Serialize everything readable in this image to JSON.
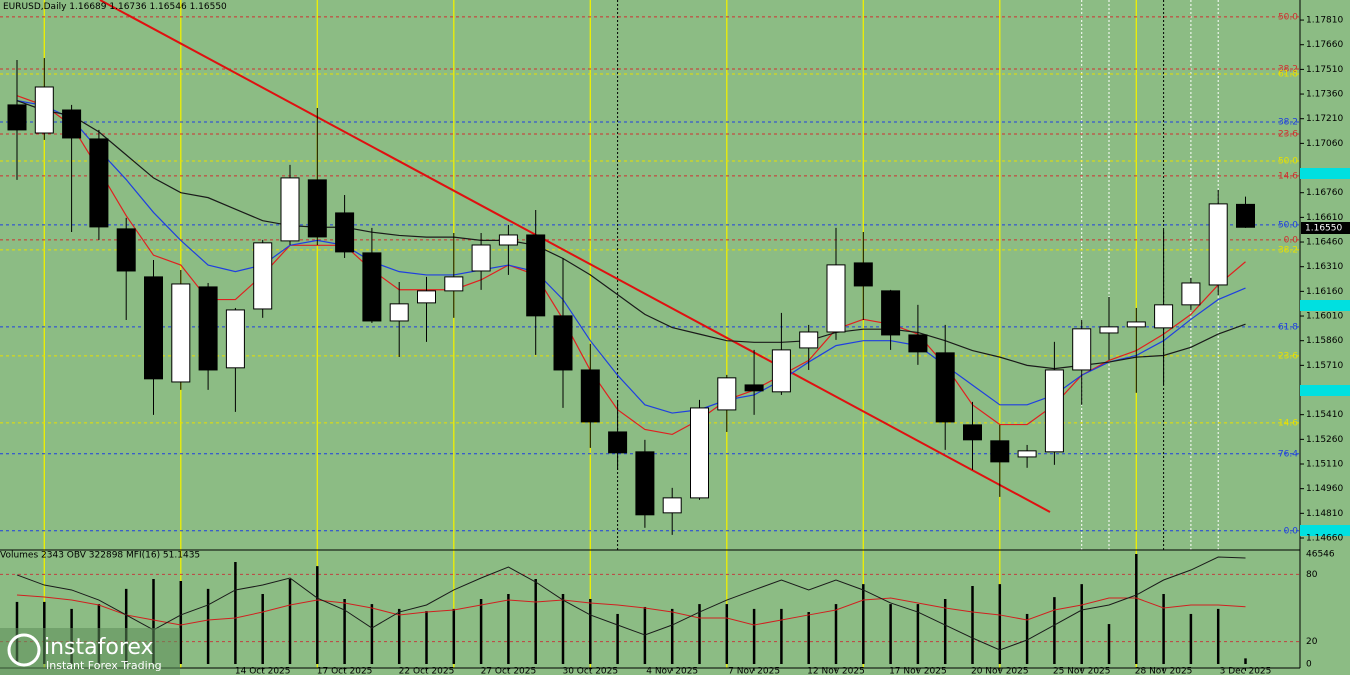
{
  "chart_data": [
    {
      "type": "candlestick",
      "title": "EURUSD,Daily",
      "last_value_labels": [
        "1.16689",
        "1.16736",
        "1.16546",
        "1.16550"
      ],
      "categories": [
        null,
        null,
        null,
        null,
        null,
        null,
        null,
        null,
        null,
        "14 Oct 2025",
        null,
        null,
        "17 Oct 2025",
        null,
        null,
        "22 Oct 2025",
        null,
        null,
        "27 Oct 2025",
        null,
        null,
        "30 Oct 2025",
        null,
        null,
        "4 Nov 2025",
        null,
        null,
        "7 Nov 2025",
        null,
        null,
        "12 Nov 2025",
        null,
        null,
        "17 Nov 2025",
        null,
        null,
        "20 Nov 2025",
        null,
        null,
        "25 Nov 2025",
        null,
        null,
        "28 Nov 2025",
        null,
        null,
        "3 Dec 2025"
      ],
      "open": [
        1.17294,
        1.17123,
        1.17263,
        1.17087,
        1.1654,
        1.16248,
        1.15609,
        1.16187,
        1.15695,
        1.16053,
        1.16467,
        1.16838,
        1.16637,
        1.16394,
        1.1598,
        1.1609,
        1.16163,
        1.16284,
        1.16442,
        1.16503,
        1.16011,
        1.15682,
        1.15305,
        1.15184,
        1.14813,
        1.14904,
        1.15439,
        1.15591,
        1.15549,
        1.15816,
        1.15913,
        1.16333,
        1.16163,
        1.15895,
        1.15786,
        1.15348,
        1.15251,
        1.15153,
        1.15184,
        1.15682,
        1.15907,
        1.15944,
        1.15938,
        1.16078,
        1.16199,
        1.16689
      ],
      "high": [
        1.17567,
        1.17579,
        1.17294,
        1.17142,
        1.16607,
        1.16351,
        1.1629,
        1.16211,
        1.16059,
        1.16473,
        1.16929,
        1.17275,
        1.16746,
        1.16546,
        1.16217,
        1.16248,
        1.16515,
        1.16515,
        1.16564,
        1.16655,
        1.16363,
        1.15841,
        1.155,
        1.15257,
        1.14965,
        1.155,
        1.15652,
        1.15804,
        1.16029,
        1.15956,
        1.16546,
        1.16521,
        1.16169,
        1.16078,
        1.15956,
        1.15488,
        1.15348,
        1.15226,
        1.15853,
        1.15986,
        1.16126,
        1.16059,
        1.16534,
        1.16242,
        1.16777,
        1.16736
      ],
      "low": [
        1.16838,
        1.17081,
        1.16521,
        1.16473,
        1.15986,
        1.15409,
        1.15561,
        1.15561,
        1.15427,
        1.15999,
        1.16442,
        1.16442,
        1.16363,
        1.15968,
        1.15761,
        1.15853,
        1.15999,
        1.16169,
        1.1626,
        1.15774,
        1.15451,
        1.15208,
        1.15074,
        1.14722,
        1.14679,
        1.14892,
        1.15305,
        1.15409,
        1.1553,
        1.15682,
        1.15865,
        1.15986,
        1.15804,
        1.15713,
        1.15196,
        1.15074,
        1.1491,
        1.15087,
        1.15105,
        1.1547,
        1.15743,
        1.15543,
        1.15591,
        1.16047,
        1.16138,
        1.16546
      ],
      "close": [
        1.17142,
        1.17403,
        1.17093,
        1.16552,
        1.16284,
        1.15628,
        1.16205,
        1.15682,
        1.16047,
        1.16455,
        1.1685,
        1.16491,
        1.164,
        1.1598,
        1.16084,
        1.16163,
        1.16248,
        1.16442,
        1.16503,
        1.16011,
        1.15682,
        1.15366,
        1.15178,
        1.14801,
        1.14904,
        1.15451,
        1.15634,
        1.15555,
        1.15804,
        1.15913,
        1.16321,
        1.16193,
        1.15895,
        1.15792,
        1.15366,
        1.15257,
        1.15123,
        1.1519,
        1.15682,
        1.15932,
        1.15944,
        1.15974,
        1.16078,
        1.16211,
        1.16692,
        1.1655
      ],
      "lines": [
        {
          "color": "#e02020",
          "values": [
            1.1735,
            1.1729,
            1.1717,
            1.169,
            1.1662,
            1.1638,
            1.1632,
            1.1611,
            1.1611,
            1.1626,
            1.1644,
            1.1644,
            1.1644,
            1.1629,
            1.1617,
            1.1617,
            1.1617,
            1.1623,
            1.1632,
            1.1626,
            1.1599,
            1.1568,
            1.1544,
            1.1532,
            1.1529,
            1.1538,
            1.155,
            1.1556,
            1.1565,
            1.1574,
            1.1593,
            1.1599,
            1.1596,
            1.159,
            1.1571,
            1.1547,
            1.1535,
            1.1535,
            1.1547,
            1.1565,
            1.1574,
            1.158,
            1.159,
            1.1602,
            1.162,
            1.1634
          ]
        },
        {
          "color": "#1f3fe0",
          "values": [
            1.1732,
            1.1729,
            1.1721,
            1.1702,
            1.1684,
            1.1664,
            1.1647,
            1.1632,
            1.1628,
            1.1632,
            1.1644,
            1.1647,
            1.1644,
            1.1634,
            1.1628,
            1.1626,
            1.1626,
            1.1629,
            1.1632,
            1.1628,
            1.1611,
            1.1586,
            1.1565,
            1.1547,
            1.1542,
            1.1544,
            1.155,
            1.1553,
            1.1562,
            1.1573,
            1.1583,
            1.1586,
            1.1586,
            1.1583,
            1.1571,
            1.1559,
            1.1547,
            1.1547,
            1.1553,
            1.1565,
            1.1573,
            1.1577,
            1.1586,
            1.1599,
            1.1611,
            1.1618
          ]
        },
        {
          "color": "#1a1a1a",
          "values": [
            1.1732,
            1.1726,
            1.1723,
            1.1713,
            1.1699,
            1.1685,
            1.1676,
            1.1673,
            1.1666,
            1.1659,
            1.1656,
            1.1655,
            1.1655,
            1.1652,
            1.165,
            1.1649,
            1.1649,
            1.1647,
            1.1647,
            1.1644,
            1.1636,
            1.1626,
            1.1614,
            1.1602,
            1.1594,
            1.159,
            1.1586,
            1.1585,
            1.1585,
            1.1586,
            1.1591,
            1.1593,
            1.1593,
            1.1591,
            1.1586,
            1.158,
            1.1576,
            1.1571,
            1.1569,
            1.1571,
            1.1573,
            1.1576,
            1.1577,
            1.1582,
            1.159,
            1.1596
          ]
        }
      ],
      "levels": [
        {
          "value": 1.17829,
          "label": "50.0",
          "color": "#d03030"
        },
        {
          "value": 1.17512,
          "label": "38.2",
          "color": "#d03030"
        },
        {
          "value": 1.17482,
          "label": "61.8",
          "color": "#e8e000"
        },
        {
          "value": 1.1719,
          "label": "38.2",
          "color": "#1f3fe0"
        },
        {
          "value": 1.17117,
          "label": "23.6",
          "color": "#d03030"
        },
        {
          "value": 1.16953,
          "label": "50.0",
          "color": "#e8e000"
        },
        {
          "value": 1.16862,
          "label": "14.6",
          "color": "#d03030"
        },
        {
          "value": 1.16564,
          "label": "50.0",
          "color": "#1f3fe0"
        },
        {
          "value": 1.16473,
          "label": "0.0",
          "color": "#d03030"
        },
        {
          "value": 1.16412,
          "label": "38.2",
          "color": "#e8e000"
        },
        {
          "value": 1.15944,
          "label": "61.8",
          "color": "#1f3fe0"
        },
        {
          "value": 1.15768,
          "label": "23.6",
          "color": "#e8e000"
        },
        {
          "value": 1.1536,
          "label": "14.6",
          "color": "#e8e000"
        },
        {
          "value": 1.15172,
          "label": "76.4",
          "color": "#1f3fe0"
        },
        {
          "value": 1.14704,
          "label": "0.0",
          "color": "#1f3fe0"
        }
      ],
      "ylim": [
        1.14587,
        1.17932
      ],
      "yticks": [
        {
          "value": 1.1781,
          "label": "1.17810"
        },
        {
          "value": 1.1766,
          "label": "1.17660"
        },
        {
          "value": 1.1751,
          "label": "1.17510"
        },
        {
          "value": 1.1736,
          "label": "1.17360"
        },
        {
          "value": 1.1721,
          "label": "1.17210"
        },
        {
          "value": 1.1706,
          "label": "1.17060"
        },
        {
          "value": 1.1676,
          "label": "1.16760"
        },
        {
          "value": 1.1661,
          "label": "1.16610"
        },
        {
          "value": 1.1646,
          "label": "1.16460"
        },
        {
          "value": 1.1631,
          "label": "1.16310"
        },
        {
          "value": 1.1616,
          "label": "1.16160"
        },
        {
          "value": 1.1601,
          "label": "1.16010"
        },
        {
          "value": 1.1586,
          "label": "1.15860"
        },
        {
          "value": 1.1571,
          "label": "1.15710"
        },
        {
          "value": 1.1541,
          "label": "1.15410"
        },
        {
          "value": 1.1526,
          "label": "1.15260"
        },
        {
          "value": 1.1511,
          "label": "1.15110"
        },
        {
          "value": 1.1496,
          "label": "1.14960"
        },
        {
          "value": 1.1481,
          "label": "1.14810"
        },
        {
          "value": 1.1466,
          "label": "1.14660"
        }
      ]
    },
    {
      "type": "bar",
      "title": "Volumes 2343  OBV 322898  MFI(16) 51.1435",
      "color": "#000000",
      "values": [
        25800,
        25800,
        22900,
        24900,
        31200,
        35300,
        34500,
        31200,
        42400,
        29100,
        35300,
        40700,
        27000,
        24900,
        22900,
        22000,
        22900,
        27000,
        29100,
        35300,
        29100,
        27000,
        20800,
        23700,
        22900,
        24900,
        24900,
        22900,
        22900,
        21600,
        24900,
        33200,
        24900,
        24900,
        27000,
        32400,
        33200,
        20800,
        27800,
        33200,
        16600,
        45700,
        29100,
        20800,
        22900,
        2343
      ],
      "ylim": [
        0,
        46546
      ],
      "series": [
        {
          "color": "#d02020",
          "axis": "y2",
          "values": [
            61.6,
            59.8,
            57.1,
            52.7,
            43.8,
            39.3,
            34.8,
            39.3,
            41.1,
            46.4,
            52.7,
            57.1,
            54.5,
            50,
            43.8,
            46.4,
            48.2,
            52.7,
            57.1,
            55.4,
            57.1,
            54.5,
            52.7,
            50,
            46.4,
            41.1,
            41.1,
            34.8,
            39.3,
            43.8,
            48.2,
            57.1,
            58.9,
            54.5,
            50,
            46.4,
            43.8,
            39.3,
            48.2,
            52.7,
            58.9,
            58.9,
            50,
            52.7,
            52.7,
            51.1
          ]
        },
        {
          "color": "#1a1a1a",
          "axis": "y2",
          "values": [
            79.5,
            70.5,
            66.1,
            57.1,
            43.8,
            30.4,
            43.8,
            52.7,
            66.1,
            70.5,
            76.8,
            58.9,
            48.2,
            32.1,
            46.4,
            52.7,
            66.1,
            76.8,
            86.6,
            73.2,
            57.1,
            43.8,
            34.8,
            25.9,
            34.8,
            46.4,
            57.1,
            66.1,
            75,
            66.1,
            75,
            66.1,
            54.5,
            46.4,
            34.8,
            23.2,
            12.5,
            21.4,
            34.8,
            48.2,
            52.7,
            61.6,
            75,
            83.9,
            95.5,
            94.6
          ]
        }
      ],
      "y2lim": [
        0,
        100
      ],
      "y2ticks": [
        0,
        20,
        80
      ]
    }
  ],
  "logo": {
    "name": "instaforex",
    "tagline": "Instant Forex Trading"
  }
}
